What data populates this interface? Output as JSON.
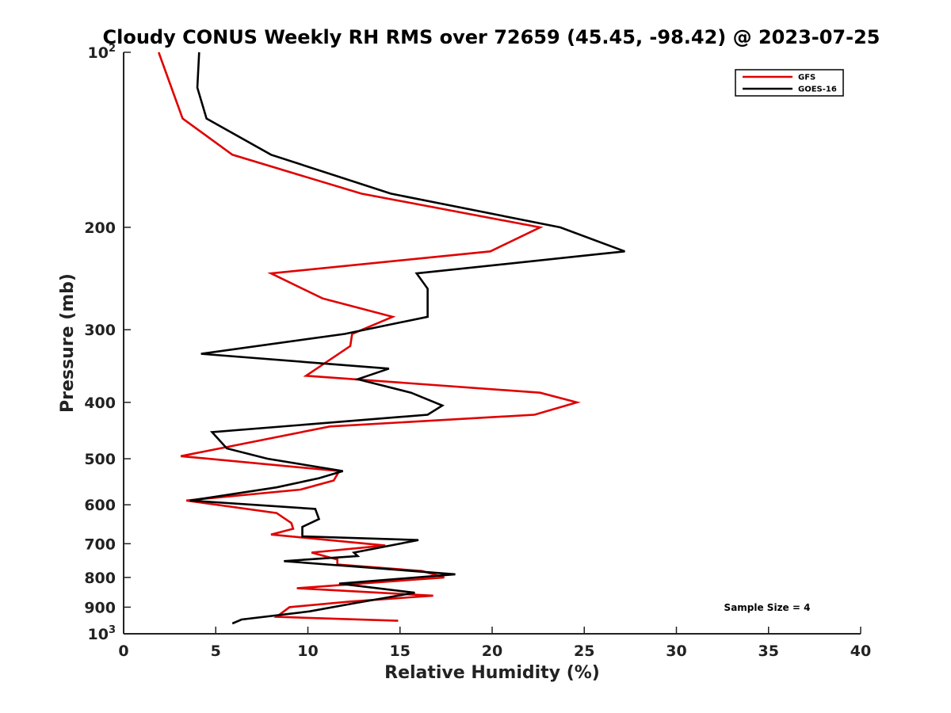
{
  "chart_data": {
    "type": "line",
    "title": "Cloudy CONUS Weekly RH RMS over 72659 (45.45, -98.42) @ 2023-07-25",
    "xlabel": "Relative Humidity (%)",
    "ylabel": "Pressure (mb)",
    "xlim": [
      0,
      40
    ],
    "ylim": [
      100,
      1000
    ],
    "y_scale": "log",
    "y_reversed": true,
    "grid": false,
    "legend_position": "top-right",
    "x_ticks": [
      0,
      5,
      10,
      15,
      20,
      25,
      30,
      35,
      40
    ],
    "y_ticks": [
      {
        "value": 100,
        "base": "10",
        "exp": "2"
      },
      {
        "value": 200,
        "label": "200"
      },
      {
        "value": 300,
        "label": "300"
      },
      {
        "value": 400,
        "label": "400"
      },
      {
        "value": 500,
        "label": "500"
      },
      {
        "value": 600,
        "label": "600"
      },
      {
        "value": 700,
        "label": "700"
      },
      {
        "value": 800,
        "label": "800"
      },
      {
        "value": 900,
        "label": "900"
      },
      {
        "value": 1000,
        "base": "10",
        "exp": "3"
      }
    ],
    "annotation": "Sample Size = 4",
    "series": [
      {
        "name": "GFS",
        "color": "#e00000",
        "points": [
          [
            1.9,
            100
          ],
          [
            3.2,
            130
          ],
          [
            5.9,
            150
          ],
          [
            12.9,
            175
          ],
          [
            22.6,
            200
          ],
          [
            19.9,
            220
          ],
          [
            8.0,
            240
          ],
          [
            10.8,
            265
          ],
          [
            14.6,
            285
          ],
          [
            12.4,
            305
          ],
          [
            12.3,
            320
          ],
          [
            9.9,
            360
          ],
          [
            22.6,
            385
          ],
          [
            24.6,
            400
          ],
          [
            22.3,
            420
          ],
          [
            11.2,
            440
          ],
          [
            3.1,
            495
          ],
          [
            11.7,
            525
          ],
          [
            11.4,
            545
          ],
          [
            9.6,
            565
          ],
          [
            3.4,
            590
          ],
          [
            8.3,
            620
          ],
          [
            9.1,
            645
          ],
          [
            9.2,
            660
          ],
          [
            8.0,
            675
          ],
          [
            14.2,
            705
          ],
          [
            10.2,
            725
          ],
          [
            11.6,
            745
          ],
          [
            11.6,
            760
          ],
          [
            16.2,
            780
          ],
          [
            17.4,
            800
          ],
          [
            9.4,
            835
          ],
          [
            16.8,
            860
          ],
          [
            12.3,
            880
          ],
          [
            9.0,
            900
          ],
          [
            8.3,
            935
          ],
          [
            14.9,
            950
          ]
        ]
      },
      {
        "name": "GOES-16",
        "color": "#000000",
        "points": [
          [
            4.1,
            100
          ],
          [
            4.0,
            115
          ],
          [
            4.5,
            130
          ],
          [
            8.0,
            150
          ],
          [
            14.5,
            175
          ],
          [
            23.7,
            200
          ],
          [
            27.2,
            220
          ],
          [
            15.9,
            240
          ],
          [
            16.5,
            255
          ],
          [
            16.5,
            285
          ],
          [
            12.0,
            305
          ],
          [
            4.2,
            330
          ],
          [
            14.4,
            350
          ],
          [
            12.7,
            365
          ],
          [
            15.6,
            385
          ],
          [
            17.3,
            405
          ],
          [
            16.5,
            420
          ],
          [
            4.8,
            450
          ],
          [
            5.6,
            480
          ],
          [
            7.8,
            500
          ],
          [
            11.9,
            525
          ],
          [
            10.6,
            540
          ],
          [
            8.3,
            560
          ],
          [
            3.6,
            590
          ],
          [
            10.4,
            610
          ],
          [
            10.6,
            635
          ],
          [
            9.7,
            655
          ],
          [
            9.7,
            680
          ],
          [
            16.0,
            690
          ],
          [
            12.5,
            725
          ],
          [
            12.7,
            735
          ],
          [
            8.7,
            750
          ],
          [
            18.0,
            790
          ],
          [
            11.7,
            820
          ],
          [
            15.8,
            850
          ],
          [
            12.6,
            885
          ],
          [
            10.1,
            915
          ],
          [
            6.4,
            945
          ],
          [
            5.9,
            960
          ]
        ]
      }
    ]
  }
}
